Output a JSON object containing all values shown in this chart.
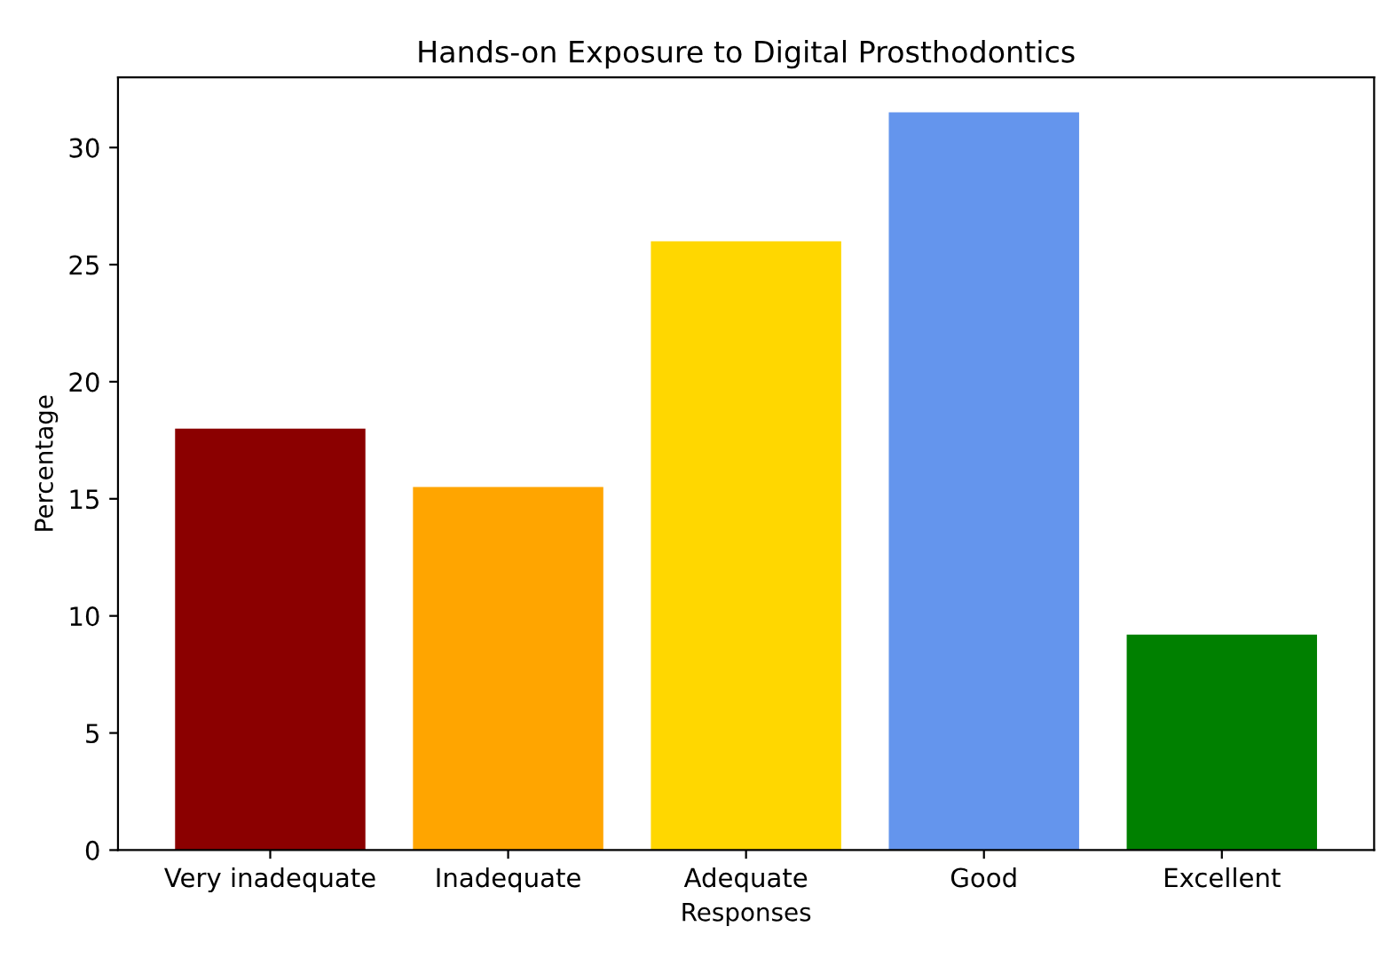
{
  "chart_data": {
    "type": "bar",
    "title": "Hands-on Exposure to Digital Prosthodontics",
    "xlabel": "Responses",
    "ylabel": "Percentage",
    "categories": [
      "Very inadequate",
      "Inadequate",
      "Adequate",
      "Good",
      "Excellent"
    ],
    "values": [
      18.0,
      15.5,
      26.0,
      31.5,
      9.2
    ],
    "colors": [
      "#8b0000",
      "#ffa500",
      "#ffd700",
      "#6495ed",
      "#008000"
    ],
    "ylim": [
      0,
      33
    ],
    "yticks": [
      0,
      5,
      10,
      15,
      20,
      25,
      30
    ],
    "grid": false
  }
}
